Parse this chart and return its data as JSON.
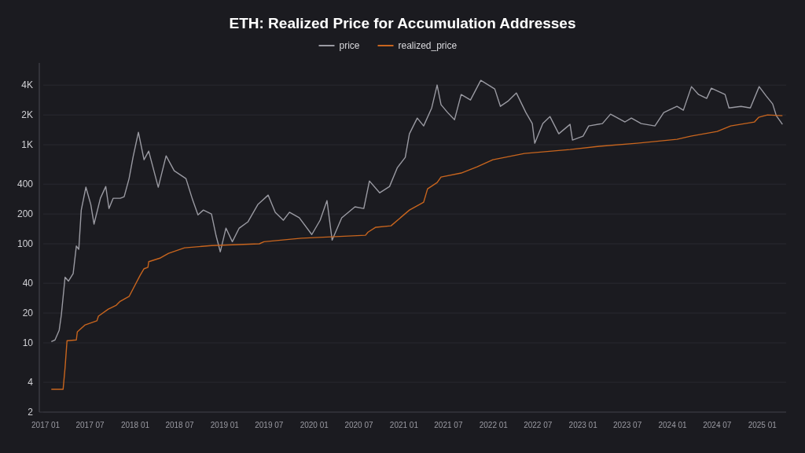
{
  "chart_data": {
    "type": "line",
    "title": "ETH: Realized Price for Accumulation Addresses",
    "legend": "top",
    "grid": "y",
    "log": true,
    "line_style": "solid",
    "marker": "none",
    "xlim": [
      "2016-12-06",
      "2025-04-08"
    ],
    "xticks": [
      {
        "value": "2017-01",
        "label": "2017 01"
      },
      {
        "value": "2017-07",
        "label": "2017 07"
      },
      {
        "value": "2018-01",
        "label": "2018 01"
      },
      {
        "value": "2018-07",
        "label": "2018 07"
      },
      {
        "value": "2019-01",
        "label": "2019 01"
      },
      {
        "value": "2019-07",
        "label": "2019 07"
      },
      {
        "value": "2020-01",
        "label": "2020 01"
      },
      {
        "value": "2020-07",
        "label": "2020 07"
      },
      {
        "value": "2021-01",
        "label": "2021 01"
      },
      {
        "value": "2021-07",
        "label": "2021 07"
      },
      {
        "value": "2022-01",
        "label": "2022 01"
      },
      {
        "value": "2022-07",
        "label": "2022 07"
      },
      {
        "value": "2023-01",
        "label": "2023 01"
      },
      {
        "value": "2023-07",
        "label": "2023 07"
      },
      {
        "value": "2024-01",
        "label": "2024 01"
      },
      {
        "value": "2024-07",
        "label": "2024 07"
      },
      {
        "value": "2025-01",
        "label": "2025 01"
      }
    ],
    "ylim": [
      2,
      6700
    ],
    "yticks": [
      2,
      4,
      10,
      20,
      40,
      100,
      200,
      400,
      {
        "value": 1000,
        "label": "1K"
      },
      {
        "value": 2000,
        "label": "2K"
      },
      {
        "value": 4000,
        "label": "4K"
      }
    ],
    "series": [
      {
        "name": "price",
        "color": "#9a9aa2",
        "x": [
          "2017-01-24",
          "2017-02-08",
          "2017-02-25",
          "2017-03-06",
          "2017-03-21",
          "2017-04-04",
          "2017-04-23",
          "2017-05-06",
          "2017-05-16",
          "2017-05-26",
          "2017-06-14",
          "2017-07-04",
          "2017-07-17",
          "2017-08-12",
          "2017-09-03",
          "2017-09-16",
          "2017-10-03",
          "2017-11-01",
          "2017-11-17",
          "2017-12-07",
          "2017-12-23",
          "2018-01-14",
          "2018-02-06",
          "2018-02-25",
          "2018-04-05",
          "2018-05-07",
          "2018-06-09",
          "2018-07-27",
          "2018-08-22",
          "2018-09-14",
          "2018-10-06",
          "2018-11-08",
          "2018-11-27",
          "2018-12-14",
          "2019-01-06",
          "2019-02-01",
          "2019-03-01",
          "2019-04-06",
          "2019-05-16",
          "2019-06-27",
          "2019-07-26",
          "2019-08-28",
          "2019-09-22",
          "2019-11-01",
          "2019-12-22",
          "2020-01-25",
          "2020-02-22",
          "2020-03-14",
          "2020-04-22",
          "2020-06-15",
          "2020-07-21",
          "2020-08-13",
          "2020-09-24",
          "2020-11-03",
          "2020-12-05",
          "2021-01-06",
          "2021-01-23",
          "2021-02-24",
          "2021-03-22",
          "2021-04-24",
          "2021-05-16",
          "2021-06-01",
          "2021-06-28",
          "2021-07-26",
          "2021-08-22",
          "2021-09-29",
          "2021-11-10",
          "2022-01-06",
          "2022-01-29",
          "2022-03-03",
          "2022-04-04",
          "2022-05-13",
          "2022-06-08",
          "2022-06-18",
          "2022-07-21",
          "2022-08-19",
          "2022-09-24",
          "2022-11-09",
          "2022-11-19",
          "2023-01-01",
          "2023-01-24",
          "2023-03-21",
          "2023-04-23",
          "2023-06-21",
          "2023-07-17",
          "2023-08-26",
          "2023-10-21",
          "2023-11-26",
          "2024-01-19",
          "2024-02-14",
          "2024-03-18",
          "2024-04-16",
          "2024-05-19",
          "2024-06-07",
          "2024-08-02",
          "2024-08-18",
          "2024-10-06",
          "2024-11-13",
          "2024-12-19",
          "2025-01-17",
          "2025-02-12",
          "2025-02-27",
          "2025-03-24"
        ],
        "values": [
          10.3,
          10.7,
          13.4,
          19.3,
          46,
          42,
          50,
          95,
          88,
          219,
          373,
          249,
          158,
          288,
          379,
          227,
          288,
          288,
          299,
          455,
          745,
          1337,
          706,
          863,
          372,
          773,
          547,
          455,
          283,
          196,
          219,
          200,
          120,
          83,
          144,
          105,
          144,
          167,
          249,
          310,
          208,
          173,
          208,
          183,
          124,
          173,
          273,
          109,
          183,
          236,
          227,
          431,
          327,
          379,
          588,
          745,
          1290,
          1858,
          1549,
          2355,
          4010,
          2535,
          2113,
          1792,
          3215,
          2830,
          4470,
          3655,
          2443,
          2780,
          3335,
          2113,
          1637,
          1035,
          1637,
          1927,
          1290,
          1607,
          1114,
          1222,
          1549,
          1637,
          2037,
          1700,
          1858,
          1637,
          1549,
          2113,
          2443,
          2233,
          3862,
          3215,
          2936,
          3724,
          3215,
          2355,
          2443,
          2355,
          3862,
          3100,
          2583,
          1963,
          1607
        ]
      },
      {
        "name": "realized_price",
        "color": "#c8651e",
        "x": [
          "2017-01-24",
          "2017-03-13",
          "2017-03-21",
          "2017-03-29",
          "2017-05-06",
          "2017-05-10",
          "2017-06-11",
          "2017-07-29",
          "2017-08-04",
          "2017-09-13",
          "2017-10-16",
          "2017-11-01",
          "2017-12-07",
          "2018-01-21",
          "2018-02-06",
          "2018-02-22",
          "2018-02-25",
          "2018-04-14",
          "2018-05-17",
          "2018-07-21",
          "2018-11-08",
          "2019-05-22",
          "2019-06-10",
          "2019-11-10",
          "2020-07-28",
          "2020-08-07",
          "2020-09-08",
          "2020-11-09",
          "2021-01-23",
          "2021-03-22",
          "2021-04-07",
          "2021-05-16",
          "2021-06-01",
          "2021-08-22",
          "2021-10-26",
          "2021-12-29",
          "2022-05-07",
          "2022-11-09",
          "2023-03-08",
          "2023-08-09",
          "2024-01-19",
          "2024-03-15",
          "2024-07-01",
          "2024-08-25",
          "2024-11-30",
          "2024-12-17",
          "2025-01-22",
          "2025-03-24"
        ],
        "values": [
          3.4,
          3.4,
          5.6,
          10.5,
          10.7,
          12.9,
          15.2,
          16.7,
          18.6,
          21.9,
          24,
          26.3,
          29.4,
          48,
          56,
          58,
          66,
          72,
          80,
          91,
          96,
          100,
          105,
          114,
          122,
          131,
          147,
          152,
          219,
          263,
          359,
          415,
          472,
          518,
          598,
          706,
          817,
          895,
          964,
          1035,
          1135,
          1222,
          1362,
          1549,
          1698,
          1892,
          2000,
          1963
        ]
      }
    ]
  }
}
